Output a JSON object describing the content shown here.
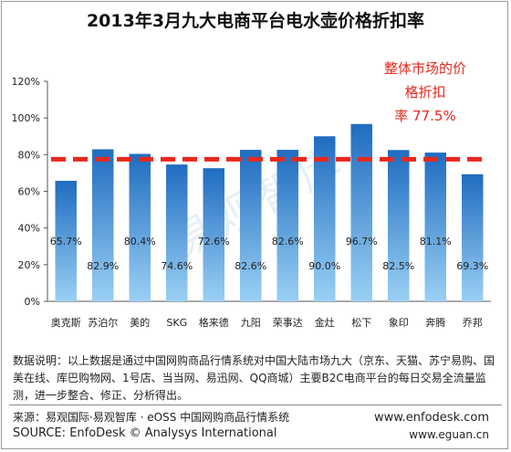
{
  "title": "2013年3月九大电商平台电水壶价格折扣率",
  "watermark": "易观智库",
  "avg_annotation": "整体市场的价格折扣率, 77.5%",
  "note": "数据说明：以上数据是通过中国网购商品行情系统对中国大陆市场九大（京东、天猫、苏宁易购、国美在线、库巴购物网、1号店、当当网、易迅网、QQ商城）主要B2C电商平台的每日交易全流量监测，进一步整合、修正、分析得出。",
  "source_cn": "来源：易观国际·易观智库 · eOSS 中国网购商品行情系统",
  "source_en": "SOURCE: EnfoDesk © Analysys International",
  "url1": "www.enfodesk.com",
  "url2": "www.eguan.cn",
  "colors": {
    "bar_top": "#1f6cc0",
    "bar_bottom": "#9ad0f4",
    "avg_line": "#e8281c"
  },
  "chart_data": {
    "type": "bar",
    "title": "2013年3月九大电商平台电水壶价格折扣率",
    "categories": [
      "奥克斯",
      "苏泊尔",
      "美的",
      "SKG",
      "格来德",
      "九阳",
      "荣事达",
      "金灶",
      "松下",
      "象印",
      "奔腾",
      "乔邦"
    ],
    "values": [
      65.7,
      82.9,
      80.4,
      74.6,
      72.6,
      82.6,
      82.6,
      90.0,
      96.7,
      82.5,
      81.1,
      69.3
    ],
    "data_labels": [
      "65.7%",
      "82.9%",
      "80.4%",
      "74.6%",
      "72.6%",
      "82.6%",
      "82.6%",
      "90.0%",
      "96.7%",
      "82.5%",
      "81.1%",
      "69.3%"
    ],
    "ylim": [
      0,
      120
    ],
    "yticks": [
      "0%",
      "20%",
      "40%",
      "60%",
      "80%",
      "100%",
      "120%"
    ],
    "reference_line": {
      "value": 77.5,
      "label": "整体市场的价格折扣率, 77.5%"
    },
    "grid": false,
    "legend": "none"
  }
}
